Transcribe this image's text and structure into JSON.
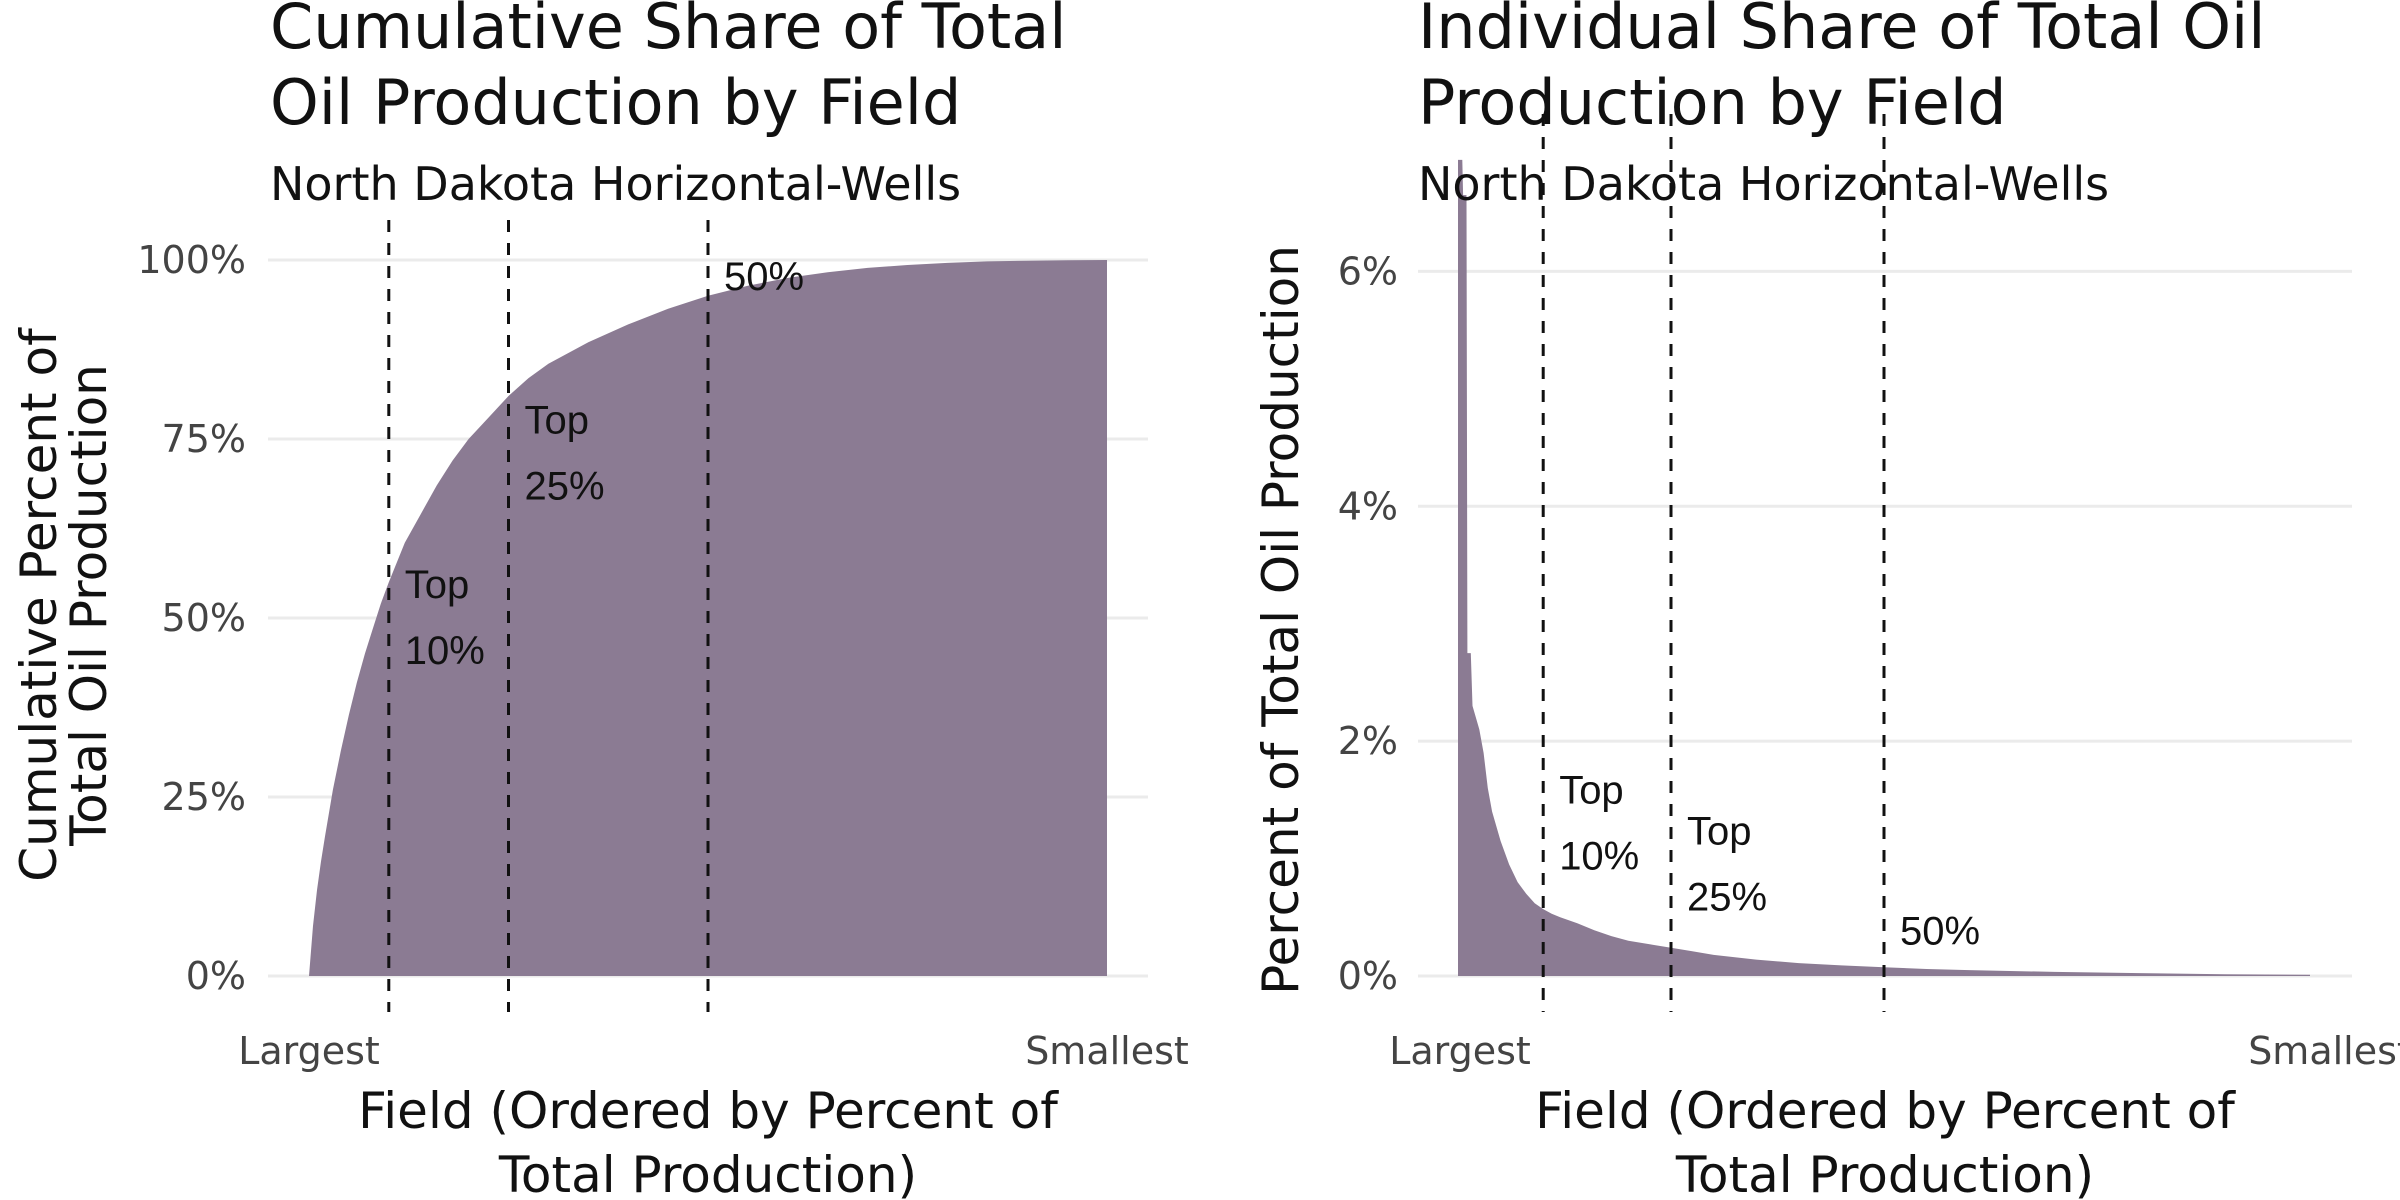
{
  "colors": {
    "fill": "#8b7b93",
    "grid": "#ebebeb",
    "text": "#111111",
    "tick": "#444444"
  },
  "chart_data": [
    {
      "type": "area",
      "title": [
        "Cumulative Share of Total",
        "Oil Production by Field"
      ],
      "subtitle": "North Dakota Horizontal-Wells",
      "xlabel": [
        "Field (Ordered by Percent of",
        "Total Production)"
      ],
      "ylabel": [
        "Cumulative Percent of",
        "Total Oil Production"
      ],
      "x_tick_labels": [
        "Largest",
        "Smallest"
      ],
      "y_ticks": [
        0,
        25,
        50,
        75,
        100
      ],
      "y_tick_labels": [
        "0%",
        "25%",
        "50%",
        "75%",
        "100%"
      ],
      "ylim": [
        0,
        100
      ],
      "grid": "horizontal",
      "x": [
        0,
        0.5,
        1,
        1.5,
        2,
        3,
        4,
        5,
        6,
        7,
        8,
        9,
        10,
        12,
        14,
        16,
        18,
        20,
        22.5,
        25,
        27.5,
        30,
        35,
        40,
        45,
        50,
        55,
        60,
        65,
        70,
        75,
        80,
        85,
        90,
        95,
        100
      ],
      "values": [
        0,
        7,
        12,
        16,
        19.5,
        26,
        31.5,
        36.5,
        41,
        45,
        48.5,
        52,
        55,
        60.5,
        64.5,
        68.5,
        72,
        75,
        78,
        81,
        83.5,
        85.5,
        88.5,
        91,
        93.2,
        95,
        96.4,
        97.5,
        98.3,
        98.9,
        99.3,
        99.6,
        99.8,
        99.9,
        99.97,
        100
      ],
      "vlines": [
        10,
        25,
        50
      ],
      "annotations": [
        {
          "x": 10,
          "y": 50,
          "lines": [
            "Top",
            "10%"
          ]
        },
        {
          "x": 25,
          "y": 73,
          "lines": [
            "Top",
            "25%"
          ]
        },
        {
          "x": 50,
          "y": 93,
          "lines": [
            "50%"
          ]
        }
      ]
    },
    {
      "type": "area",
      "title": [
        "Individual Share of Total Oil",
        "Production by Field"
      ],
      "subtitle": "North Dakota Horizontal-Wells",
      "xlabel": [
        "Field (Ordered by Percent of",
        "Total Production)"
      ],
      "ylabel": [
        "Percent of Total Oil Production"
      ],
      "x_tick_labels": [
        "Largest",
        "Smallest"
      ],
      "y_ticks": [
        0,
        2,
        4,
        6
      ],
      "y_tick_labels": [
        "0%",
        "2%",
        "4%",
        "6%"
      ],
      "ylim": [
        0,
        7.0
      ],
      "grid": "horizontal",
      "x": [
        0,
        0.5,
        0.6,
        1.0,
        1.1,
        1.5,
        1.7,
        2.5,
        3,
        3.5,
        4,
        5,
        6,
        7,
        8,
        9,
        10,
        11,
        12,
        14,
        16,
        18,
        20,
        22.5,
        25,
        27.5,
        30,
        35,
        40,
        45,
        50,
        55,
        60,
        70,
        80,
        90,
        100
      ],
      "values": [
        6.95,
        6.95,
        6.65,
        6.65,
        2.75,
        2.75,
        2.3,
        2.1,
        1.9,
        1.6,
        1.4,
        1.15,
        0.95,
        0.8,
        0.7,
        0.62,
        0.57,
        0.53,
        0.5,
        0.45,
        0.39,
        0.34,
        0.3,
        0.27,
        0.24,
        0.21,
        0.18,
        0.14,
        0.11,
        0.09,
        0.075,
        0.06,
        0.05,
        0.035,
        0.025,
        0.015,
        0.01
      ],
      "vlines": [
        10,
        25,
        50
      ],
      "annotations": [
        {
          "x": 10,
          "y": 1.3,
          "lines": [
            "Top",
            "10%"
          ]
        },
        {
          "x": 25,
          "y": 0.95,
          "lines": [
            "Top",
            "25%"
          ]
        },
        {
          "x": 50,
          "y": 0.1,
          "lines": [
            "50%"
          ]
        }
      ]
    }
  ]
}
